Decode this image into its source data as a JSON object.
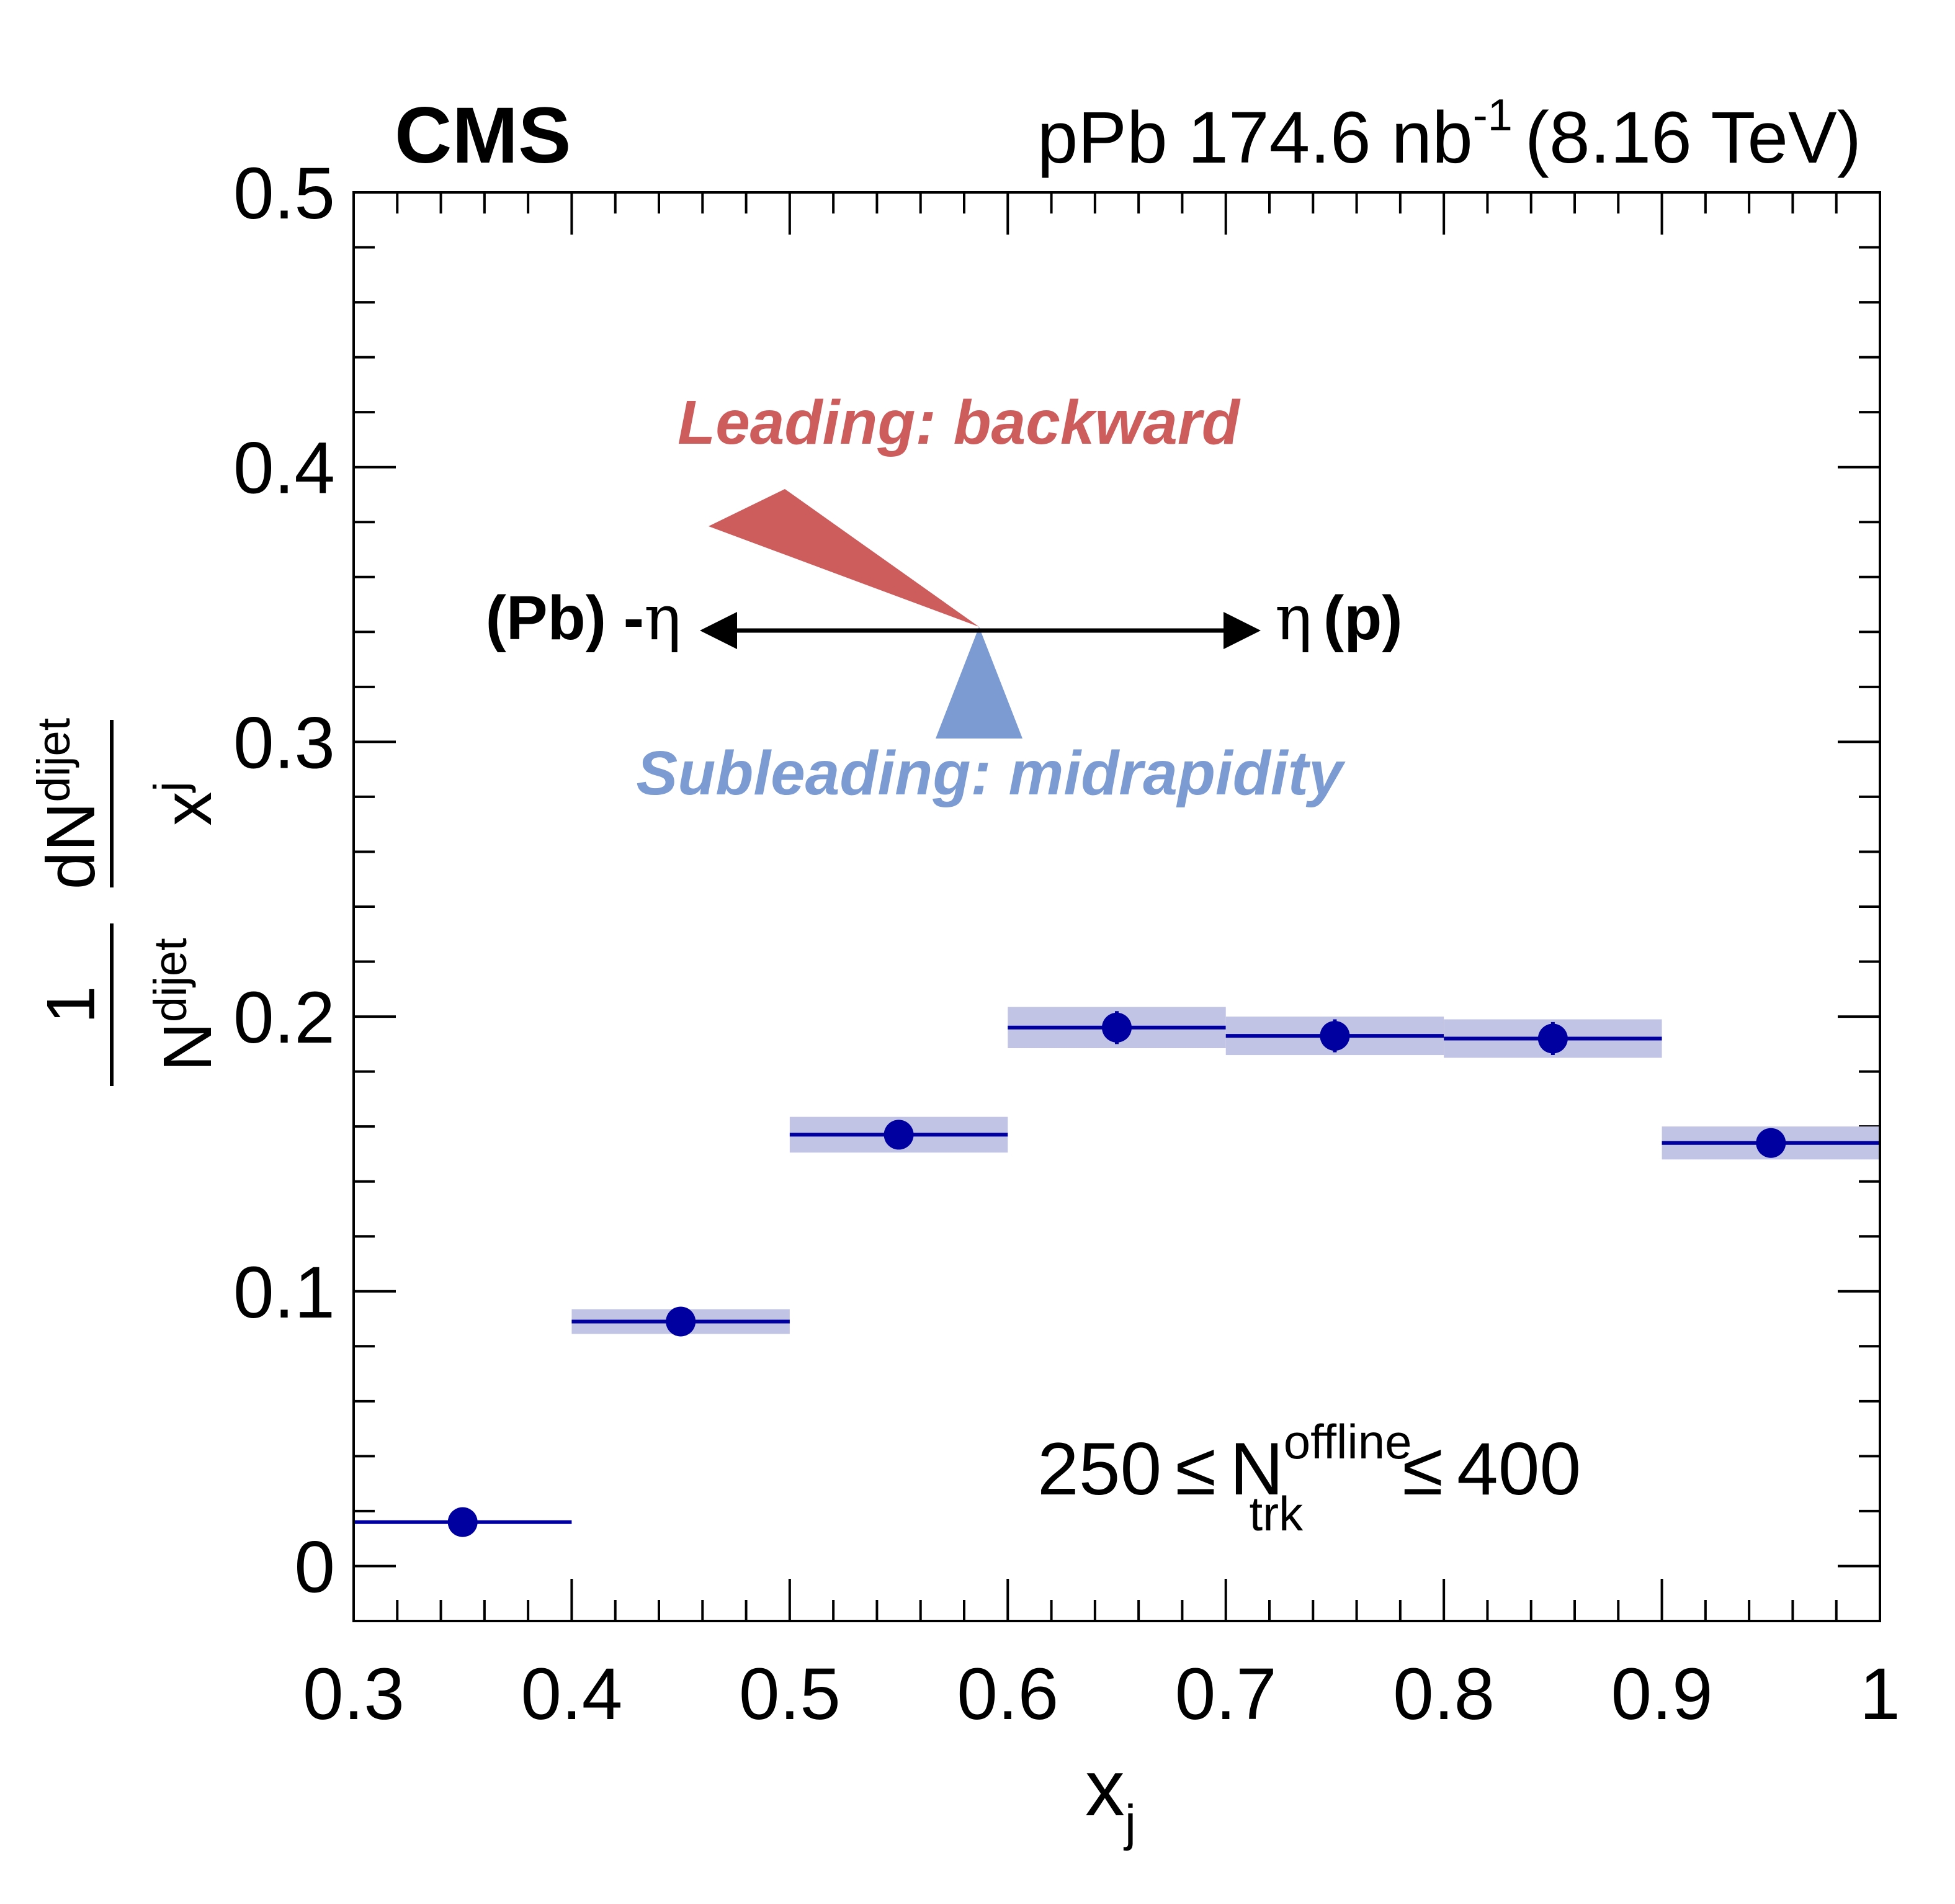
{
  "chart_data": {
    "type": "scatter",
    "experiment": "CMS",
    "lumi_label": "pPb 174.6 nb",
    "lumi_superscript": "-1",
    "energy_label": "(8.16 TeV)",
    "xlabel": "x",
    "xlabel_sub": "j",
    "ylabel": {
      "num_main": "dN",
      "num_sub": "dijet",
      "den_main": "x",
      "den_sub": "j",
      "pre_num": "1",
      "pre_den_main": "N",
      "pre_den_sub": "dijet"
    },
    "xlim": [
      0.3,
      1.0
    ],
    "ylim": [
      -0.02,
      0.5
    ],
    "x_ticks": [
      0.3,
      0.4,
      0.5,
      0.6,
      0.7,
      0.8,
      0.9,
      1.0
    ],
    "x_tick_labels": [
      "0.3",
      "0.4",
      "0.5",
      "0.6",
      "0.7",
      "0.8",
      "0.9",
      "1"
    ],
    "y_ticks": [
      0,
      0.1,
      0.2,
      0.3,
      0.4,
      0.5
    ],
    "y_tick_labels": [
      "0",
      "0.1",
      "0.2",
      "0.3",
      "0.4",
      "0.5"
    ],
    "series": [
      {
        "color": "#0000a0",
        "band_color": "#c2c4e6",
        "points": [
          {
            "x_low": 0.3,
            "x_high": 0.4,
            "x": 0.35,
            "y": 0.016,
            "stat_err": 0.0,
            "sys_err": 0.0
          },
          {
            "x_low": 0.4,
            "x_high": 0.5,
            "x": 0.45,
            "y": 0.089,
            "stat_err": 0.002,
            "sys_err": 0.0045
          },
          {
            "x_low": 0.5,
            "x_high": 0.6,
            "x": 0.55,
            "y": 0.157,
            "stat_err": 0.005,
            "sys_err": 0.0065
          },
          {
            "x_low": 0.6,
            "x_high": 0.7,
            "x": 0.65,
            "y": 0.196,
            "stat_err": 0.006,
            "sys_err": 0.0075
          },
          {
            "x_low": 0.7,
            "x_high": 0.8,
            "x": 0.75,
            "y": 0.193,
            "stat_err": 0.006,
            "sys_err": 0.007
          },
          {
            "x_low": 0.8,
            "x_high": 0.9,
            "x": 0.85,
            "y": 0.192,
            "stat_err": 0.006,
            "sys_err": 0.007
          },
          {
            "x_low": 0.9,
            "x_high": 1.0,
            "x": 0.95,
            "y": 0.154,
            "stat_err": 0.005,
            "sys_err": 0.006
          }
        ]
      }
    ],
    "annotations": {
      "leading_label": "Leading: backward",
      "leading_color": "#cd5c5c",
      "subleading_label": "Subleading: midrapidity",
      "subleading_color": "#7b9bd2",
      "left_label_text": "(Pb) -",
      "left_label_symbol": "η",
      "right_label_symbol": "η",
      "right_label_text": "(p)",
      "selection_low": "250",
      "selection_le1": "≤",
      "selection_n": "N",
      "selection_sup": "offline",
      "selection_sub": "trk",
      "selection_le2": "≤",
      "selection_high": "400"
    },
    "grid": false,
    "legend": "none"
  }
}
